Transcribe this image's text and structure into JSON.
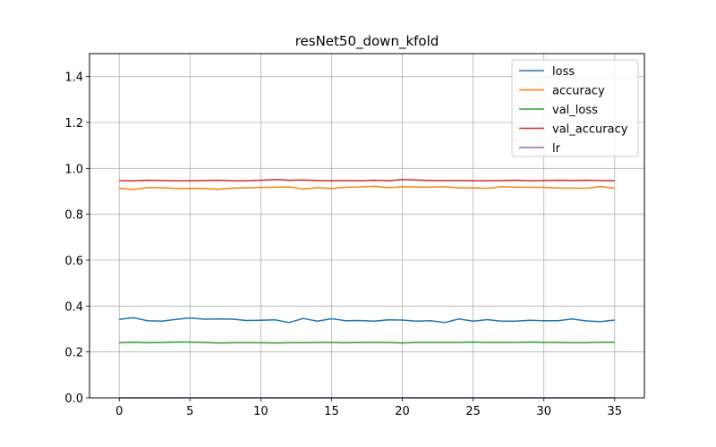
{
  "chart_data": {
    "type": "line",
    "title": "resNet50_down_kfold",
    "xlabel": "",
    "ylabel": "",
    "xlim": [
      -2.1,
      37.1
    ],
    "ylim": [
      0.0,
      1.5
    ],
    "xticks": [
      0,
      5,
      10,
      15,
      20,
      25,
      30,
      35
    ],
    "yticks": [
      0.0,
      0.2,
      0.4,
      0.6,
      0.8,
      1.0,
      1.2,
      1.4
    ],
    "ytick_labels": [
      "0.0",
      "0.2",
      "0.4",
      "0.6",
      "0.8",
      "1.0",
      "1.2",
      "1.4"
    ],
    "grid": true,
    "legend_position": "upper right",
    "x": [
      0,
      1,
      2,
      3,
      4,
      5,
      6,
      7,
      8,
      9,
      10,
      11,
      12,
      13,
      14,
      15,
      16,
      17,
      18,
      19,
      20,
      21,
      22,
      23,
      24,
      25,
      26,
      27,
      28,
      29,
      30,
      31,
      32,
      33,
      34,
      35
    ],
    "series": [
      {
        "name": "loss",
        "color": "#1f77b4",
        "values": [
          0.342,
          0.349,
          0.336,
          0.334,
          0.342,
          0.348,
          0.343,
          0.344,
          0.343,
          0.337,
          0.338,
          0.34,
          0.328,
          0.346,
          0.334,
          0.345,
          0.336,
          0.337,
          0.334,
          0.34,
          0.339,
          0.334,
          0.336,
          0.328,
          0.344,
          0.334,
          0.341,
          0.334,
          0.334,
          0.338,
          0.336,
          0.336,
          0.344,
          0.335,
          0.332,
          0.339
        ]
      },
      {
        "name": "accuracy",
        "color": "#ff7f0e",
        "values": [
          0.913,
          0.908,
          0.916,
          0.916,
          0.912,
          0.913,
          0.912,
          0.909,
          0.914,
          0.915,
          0.917,
          0.918,
          0.919,
          0.91,
          0.916,
          0.912,
          0.918,
          0.919,
          0.922,
          0.916,
          0.92,
          0.919,
          0.918,
          0.92,
          0.915,
          0.915,
          0.913,
          0.92,
          0.918,
          0.918,
          0.917,
          0.914,
          0.914,
          0.913,
          0.921,
          0.913
        ]
      },
      {
        "name": "val_loss",
        "color": "#2ca02c",
        "values": [
          0.24,
          0.242,
          0.24,
          0.241,
          0.243,
          0.243,
          0.241,
          0.239,
          0.24,
          0.24,
          0.24,
          0.239,
          0.24,
          0.24,
          0.241,
          0.241,
          0.24,
          0.241,
          0.241,
          0.241,
          0.239,
          0.241,
          0.241,
          0.241,
          0.241,
          0.243,
          0.241,
          0.241,
          0.241,
          0.243,
          0.241,
          0.241,
          0.24,
          0.24,
          0.242,
          0.242
        ]
      },
      {
        "name": "val_accuracy",
        "color": "#d62728",
        "values": [
          0.946,
          0.946,
          0.948,
          0.947,
          0.946,
          0.946,
          0.947,
          0.948,
          0.946,
          0.946,
          0.948,
          0.951,
          0.948,
          0.949,
          0.947,
          0.946,
          0.947,
          0.946,
          0.948,
          0.946,
          0.951,
          0.949,
          0.947,
          0.947,
          0.947,
          0.946,
          0.946,
          0.947,
          0.948,
          0.946,
          0.947,
          0.948,
          0.947,
          0.948,
          0.947,
          0.946
        ]
      },
      {
        "name": "lr",
        "color": "#9467bd",
        "values": [
          0.0001,
          0.0001,
          0.0001,
          0.0001,
          0.0001,
          0.0001,
          0.0001,
          0.0001,
          0.0001,
          0.0001,
          0.0001,
          0.0001,
          0.0001,
          0.0001,
          0.0001,
          0.0001,
          0.0001,
          0.0001,
          0.0001,
          0.0001,
          0.0001,
          0.0001,
          0.0001,
          0.0001,
          0.0001,
          0.0001,
          0.0001,
          0.0001,
          0.0001,
          0.0001,
          0.0001,
          0.0001,
          0.0001,
          0.0001,
          0.0001,
          0.0001
        ]
      }
    ]
  }
}
